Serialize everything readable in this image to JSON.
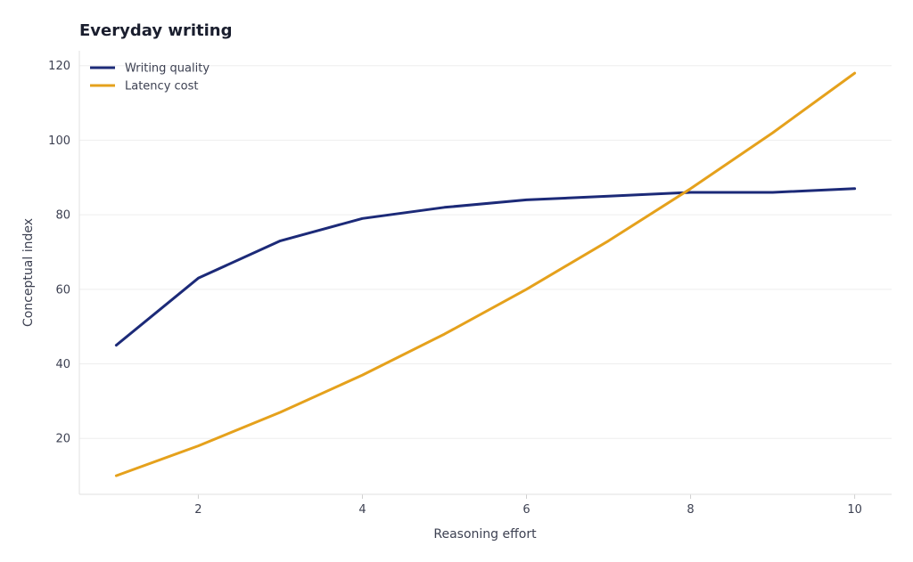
{
  "chart_data": {
    "type": "line",
    "title": "Everyday writing",
    "xlabel": "Reasoning effort",
    "ylabel": "Conceptual index",
    "x": [
      1,
      2,
      3,
      4,
      5,
      6,
      7,
      8,
      9,
      10
    ],
    "xlim": [
      0.55,
      10.45
    ],
    "ylim": [
      5,
      124
    ],
    "xticks": [
      2,
      4,
      6,
      8,
      10
    ],
    "yticks": [
      20,
      40,
      60,
      80,
      100,
      120
    ],
    "grid": true,
    "legend_position": "top-left",
    "series": [
      {
        "name": "Writing quality",
        "color": "#1c2a78",
        "values": [
          45,
          63,
          73,
          79,
          82,
          84,
          85,
          86,
          86,
          87
        ]
      },
      {
        "name": "Latency cost",
        "color": "#e5a11c",
        "values": [
          10,
          18,
          27,
          37,
          48,
          60,
          73,
          87,
          102,
          118
        ]
      }
    ]
  }
}
